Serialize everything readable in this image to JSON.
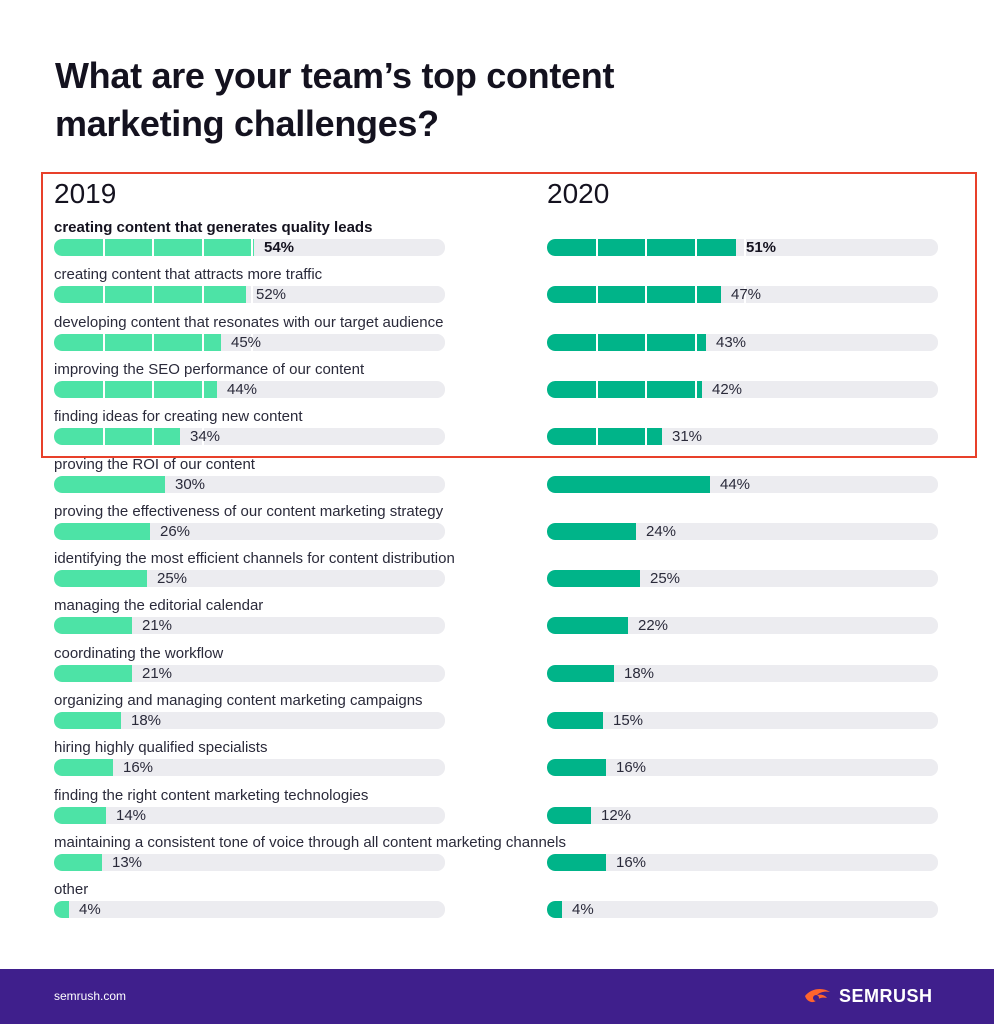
{
  "title": "What are your team’s top content marketing challenges?",
  "chart_data": {
    "type": "bar",
    "orientation": "horizontal",
    "categories": [
      "creating content that generates quality leads",
      "creating content that attracts more traffic",
      "developing content that resonates with our target audience",
      "improving the SEO performance of our content",
      "finding ideas for creating new content",
      "proving the ROI of our content",
      "proving the effectiveness of our content marketing strategy",
      "identifying the most efficient channels for content distribution",
      "managing the editorial calendar",
      "coordinating the workflow",
      "organizing and managing content marketing campaigns",
      "hiring highly qualified specialists",
      "finding the right content marketing technologies",
      "maintaining a consistent tone of voice through all content marketing channels",
      "other"
    ],
    "series": [
      {
        "name": "2019",
        "color": "#4de3a6",
        "values": [
          54,
          52,
          45,
          44,
          34,
          30,
          26,
          25,
          21,
          21,
          18,
          16,
          14,
          13,
          4
        ]
      },
      {
        "name": "2020",
        "color": "#00b489",
        "values": [
          51,
          47,
          43,
          42,
          31,
          44,
          24,
          25,
          22,
          18,
          15,
          16,
          12,
          16,
          4
        ]
      }
    ],
    "unit": "%",
    "xlim": [
      0,
      100
    ],
    "highlighted_rows": 5
  },
  "footer": {
    "url": "semrush.com",
    "brand": "SEMRUSH",
    "brand_icon": "semrush-fire-icon",
    "background": "#3f1f8c",
    "accent": "#ff642d"
  },
  "highlight_color": "#e8402a"
}
